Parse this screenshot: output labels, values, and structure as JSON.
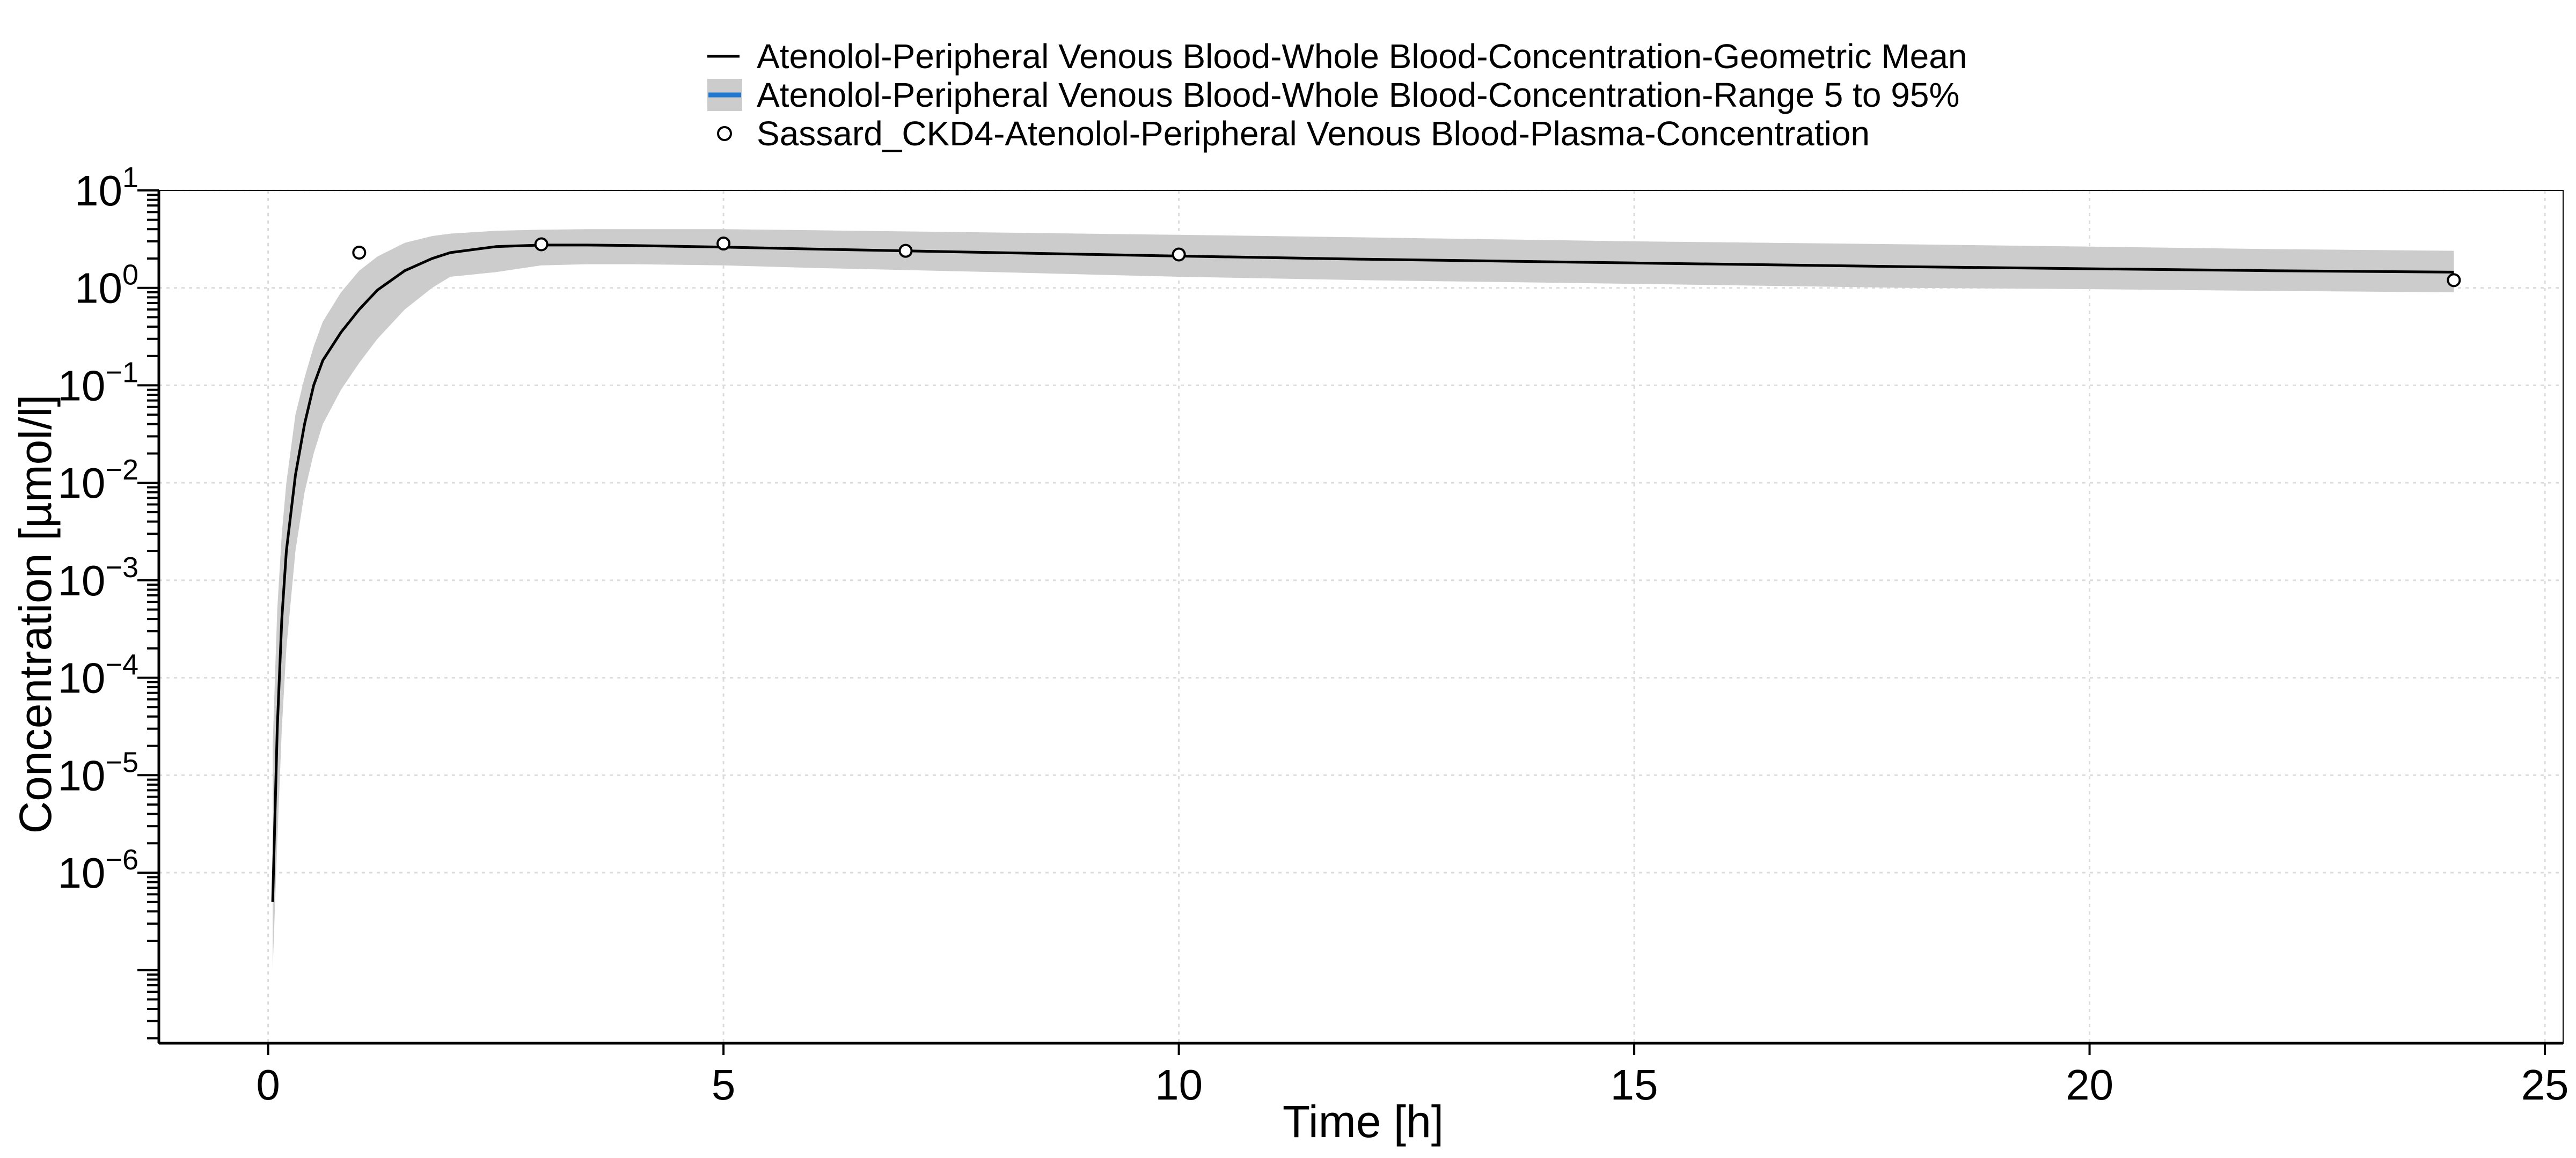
{
  "chart_data": {
    "type": "line",
    "xlabel": "Time [h]",
    "ylabel": "Concentration [µmol/l]",
    "xlim": [
      -1.2,
      25.2
    ],
    "ylim_log10": [
      -7.75,
      1
    ],
    "y_scale": "log",
    "grid": true,
    "legend_position": "top-center",
    "x_ticks": [
      0,
      5,
      10,
      15,
      20,
      25
    ],
    "y_tick_exponents": [
      1,
      0,
      -1,
      -2,
      -3,
      -4,
      -5,
      -6
    ],
    "legend": [
      {
        "label": "Atenolol-Peripheral Venous Blood-Whole Blood-Concentration-Geometric Mean",
        "symbol": "line"
      },
      {
        "label": "Atenolol-Peripheral Venous Blood-Whole Blood-Concentration-Range 5 to 95%",
        "symbol": "band"
      },
      {
        "label": "Sassard_CKD4-Atenolol-Peripheral Venous Blood-Plasma-Concentration",
        "symbol": "circle"
      }
    ],
    "series": [
      {
        "name": "Atenolol-Peripheral Venous Blood-Whole Blood-Concentration-Geometric Mean",
        "kind": "line",
        "x": [
          0.05,
          0.1,
          0.15,
          0.2,
          0.3,
          0.4,
          0.5,
          0.6,
          0.8,
          1.0,
          1.2,
          1.5,
          1.8,
          2.0,
          2.5,
          3.0,
          3.5,
          4,
          5,
          6,
          8,
          10,
          12,
          15,
          18,
          20,
          22,
          24
        ],
        "y": [
          5e-07,
          3e-05,
          0.0004,
          0.002,
          0.012,
          0.04,
          0.1,
          0.18,
          0.35,
          0.6,
          0.95,
          1.5,
          2.0,
          2.3,
          2.65,
          2.75,
          2.75,
          2.72,
          2.62,
          2.5,
          2.3,
          2.12,
          1.97,
          1.8,
          1.65,
          1.57,
          1.5,
          1.45
        ]
      },
      {
        "name": "Atenolol-Peripheral Venous Blood-Whole Blood-Concentration-Range 5 to 95%",
        "kind": "band",
        "x": [
          0.05,
          0.1,
          0.15,
          0.2,
          0.3,
          0.4,
          0.5,
          0.6,
          0.8,
          1.0,
          1.2,
          1.5,
          1.8,
          2.0,
          2.5,
          3.0,
          3.5,
          4,
          5,
          6,
          8,
          10,
          12,
          15,
          18,
          20,
          22,
          24
        ],
        "lower": [
          1e-07,
          2e-06,
          3e-05,
          0.0002,
          0.002,
          0.008,
          0.02,
          0.04,
          0.09,
          0.17,
          0.3,
          0.6,
          1.0,
          1.3,
          1.45,
          1.7,
          1.75,
          1.75,
          1.7,
          1.6,
          1.45,
          1.3,
          1.2,
          1.1,
          1.0,
          0.97,
          0.93,
          0.9
        ],
        "upper": [
          2e-05,
          0.0005,
          0.003,
          0.01,
          0.05,
          0.12,
          0.25,
          0.45,
          0.9,
          1.5,
          2.1,
          2.9,
          3.4,
          3.6,
          3.85,
          3.95,
          4.0,
          4.0,
          4.0,
          3.9,
          3.7,
          3.5,
          3.3,
          3.0,
          2.8,
          2.65,
          2.5,
          2.4
        ]
      },
      {
        "name": "Sassard_CKD4-Atenolol-Peripheral Venous Blood-Plasma-Concentration",
        "kind": "scatter",
        "x": [
          1,
          3,
          5,
          7,
          10,
          24
        ],
        "y": [
          2.3,
          2.8,
          2.85,
          2.4,
          2.2,
          1.2
        ]
      }
    ]
  }
}
